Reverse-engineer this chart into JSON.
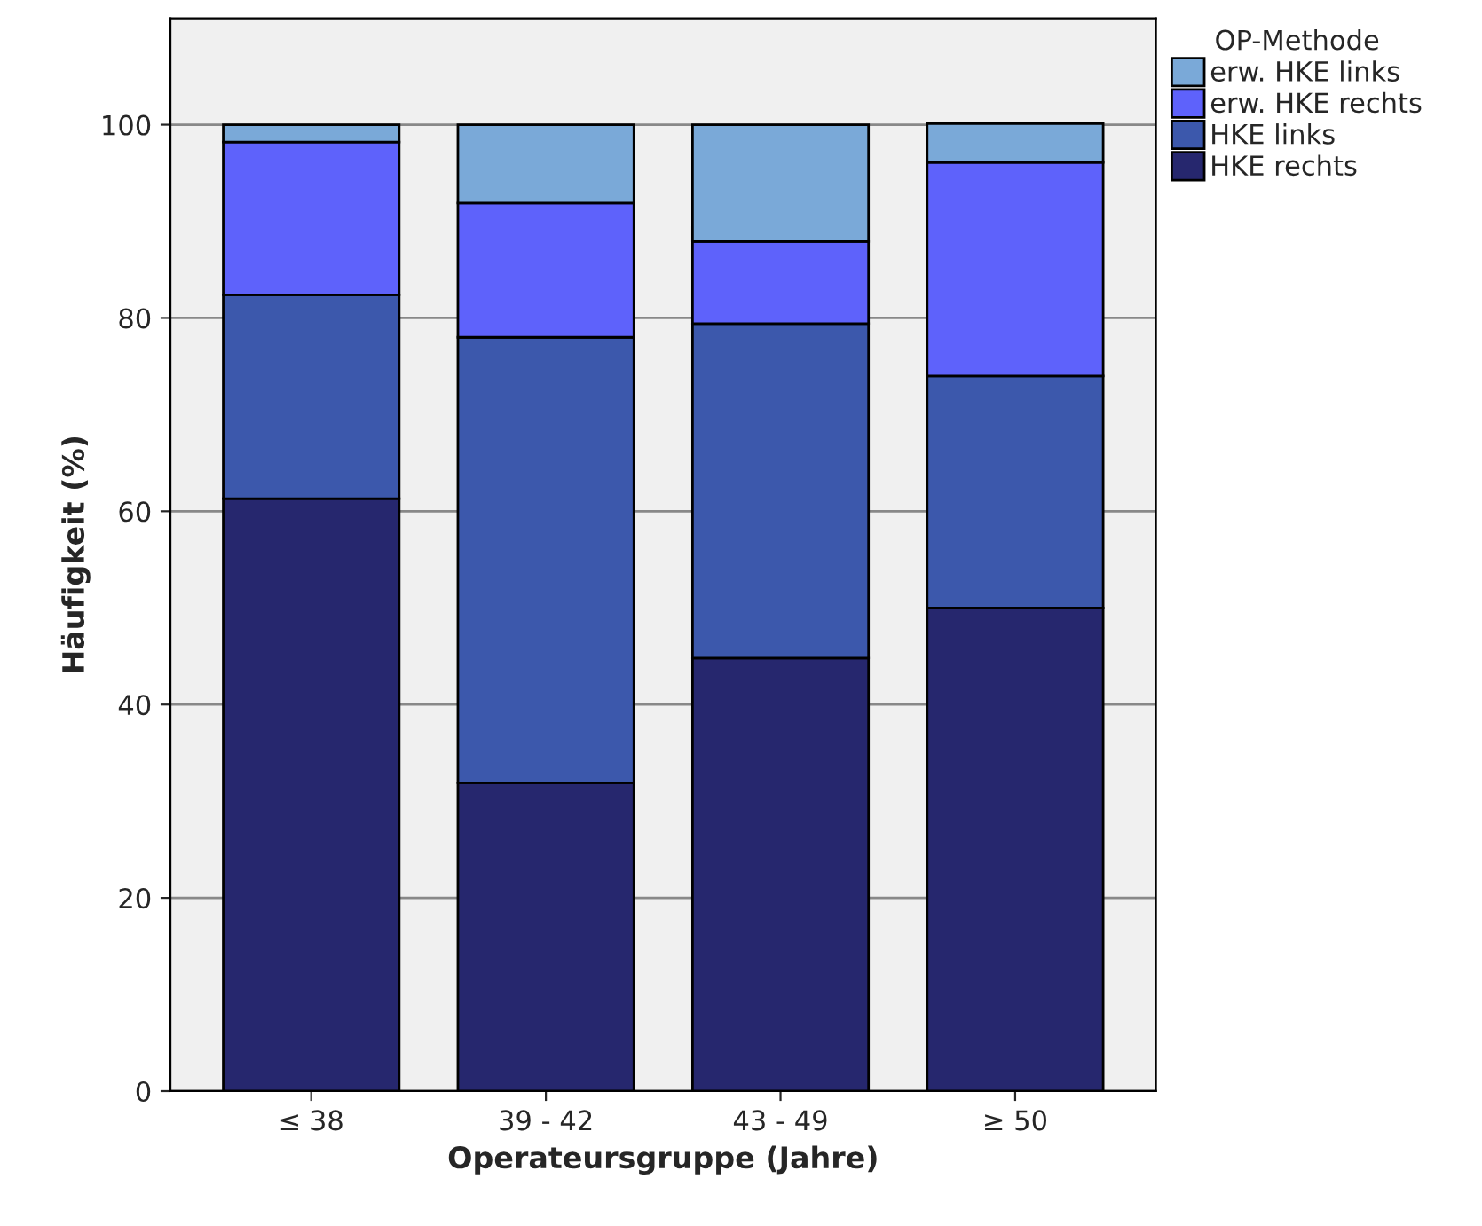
{
  "chart_data": {
    "type": "bar",
    "stacked": true,
    "xlabel": "Operateursgruppe (Jahre)",
    "ylabel": "Häufigkeit (%)",
    "legend_title": "OP-Methode",
    "categories": [
      "≤ 38",
      "39 - 42",
      "43 - 49",
      "≥ 50"
    ],
    "series": [
      {
        "name": "HKE rechts",
        "color": "#26276e",
        "values": [
          61.3,
          31.9,
          44.8,
          50.0
        ]
      },
      {
        "name": "HKE links",
        "color": "#3c58ac",
        "values": [
          21.1,
          46.1,
          34.6,
          24.0
        ]
      },
      {
        "name": "erw. HKE rechts",
        "color": "#5e62fb",
        "values": [
          15.8,
          13.9,
          8.5,
          22.1
        ]
      },
      {
        "name": "erw. HKE links",
        "color": "#7aa9d8",
        "values": [
          1.8,
          8.1,
          12.1,
          4.0
        ]
      }
    ],
    "ylim": [
      0,
      111
    ],
    "yticks": [
      0,
      20,
      40,
      60,
      80,
      100
    ],
    "grid": "y",
    "legend": "top right"
  }
}
